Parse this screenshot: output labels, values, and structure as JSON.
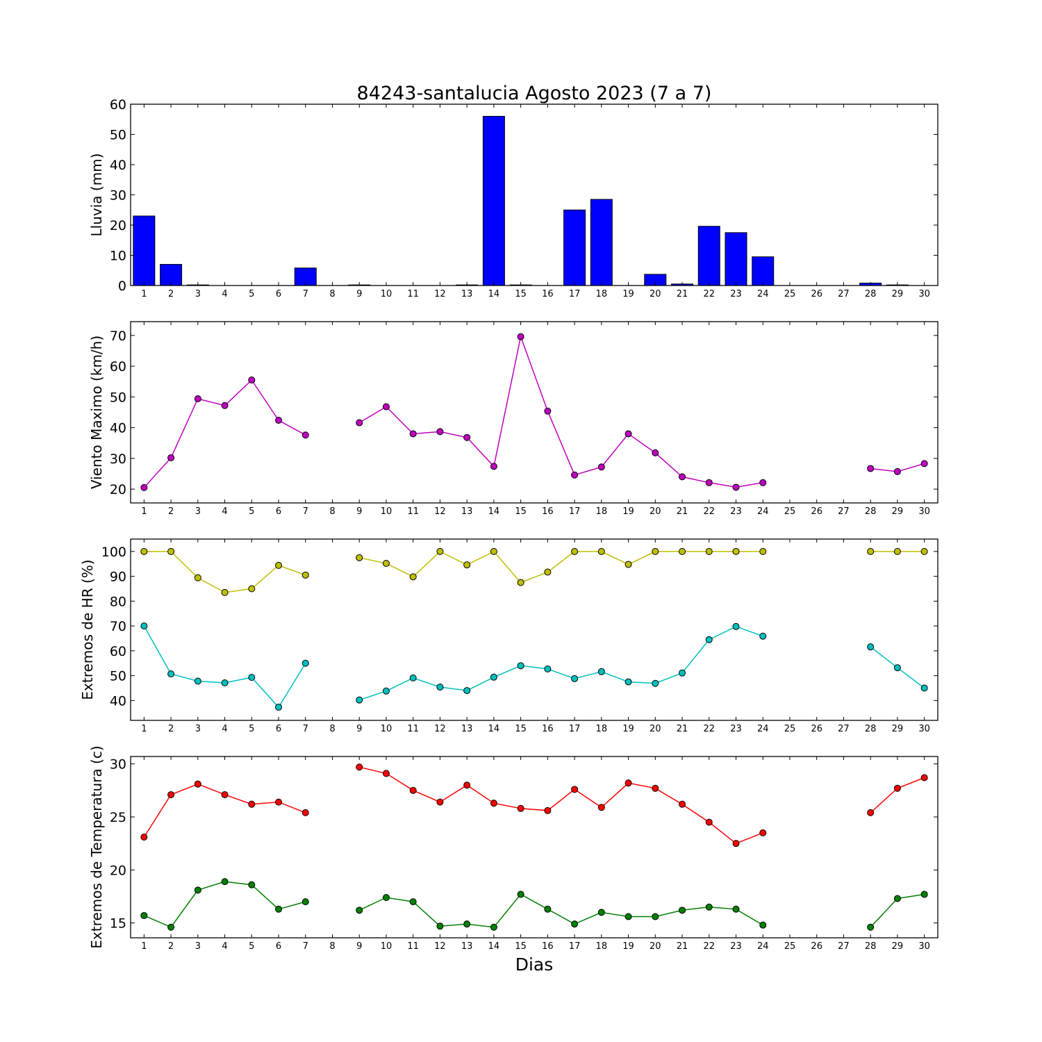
{
  "chart_data": [
    {
      "type": "bar",
      "title": "84243-santalucia Agosto 2023  (7 a 7)",
      "ylabel": "Lluvia (mm)",
      "xlabel": "",
      "categories": [
        "1",
        "2",
        "3",
        "4",
        "5",
        "6",
        "7",
        "8",
        "9",
        "10",
        "11",
        "12",
        "13",
        "14",
        "15",
        "16",
        "17",
        "18",
        "19",
        "20",
        "21",
        "22",
        "23",
        "24",
        "25",
        "26",
        "27",
        "28",
        "29",
        "30"
      ],
      "ylim": [
        0,
        60
      ],
      "yticks": [
        0,
        10,
        20,
        30,
        40,
        50,
        60
      ],
      "color": "#0000ff",
      "series": [
        {
          "values": [
            23,
            7,
            0.2,
            0,
            0,
            0,
            5.8,
            null,
            0.2,
            0,
            0,
            0,
            0.2,
            56,
            0.2,
            0,
            25,
            28.5,
            0,
            3.7,
            0.5,
            19.6,
            17.5,
            9.5,
            null,
            null,
            null,
            0.8,
            0.2,
            null
          ]
        }
      ]
    },
    {
      "type": "line",
      "ylabel": "Viento Maximo (km/h)",
      "xlabel": "",
      "categories": [
        "1",
        "2",
        "3",
        "4",
        "5",
        "6",
        "7",
        "8",
        "9",
        "10",
        "11",
        "12",
        "13",
        "14",
        "15",
        "16",
        "17",
        "18",
        "19",
        "20",
        "21",
        "22",
        "23",
        "24",
        "25",
        "26",
        "27",
        "28",
        "29",
        "30"
      ],
      "ylim": [
        15.5,
        74.5
      ],
      "yticks": [
        20,
        30,
        40,
        50,
        60,
        70
      ],
      "series": [
        {
          "color": "#bf00bf",
          "values": [
            20.5,
            30.2,
            49.4,
            47.2,
            55.5,
            42.4,
            37.6,
            null,
            41.6,
            46.8,
            38.0,
            38.7,
            36.8,
            27.4,
            69.6,
            45.4,
            24.6,
            27.2,
            38.0,
            31.8,
            24.0,
            22.1,
            20.6,
            22.1,
            null,
            null,
            null,
            26.7,
            25.7,
            28.3
          ]
        }
      ]
    },
    {
      "type": "line",
      "ylabel": "Extremos de HR (%)",
      "xlabel": "",
      "categories": [
        "1",
        "2",
        "3",
        "4",
        "5",
        "6",
        "7",
        "8",
        "9",
        "10",
        "11",
        "12",
        "13",
        "14",
        "15",
        "16",
        "17",
        "18",
        "19",
        "20",
        "21",
        "22",
        "23",
        "24",
        "25",
        "26",
        "27",
        "28",
        "29",
        "30"
      ],
      "ylim": [
        32,
        105
      ],
      "yticks": [
        40,
        50,
        60,
        70,
        80,
        90,
        100
      ],
      "series": [
        {
          "color": "#bfbf00",
          "values": [
            100,
            100,
            89.4,
            83.5,
            85.0,
            94.4,
            90.5,
            null,
            97.5,
            95.2,
            89.8,
            100,
            94.6,
            100,
            87.5,
            91.7,
            100,
            100,
            94.8,
            100,
            100,
            100,
            100,
            100,
            null,
            null,
            null,
            100,
            100,
            100
          ]
        },
        {
          "color": "#00bfbf",
          "values": [
            70.0,
            50.7,
            47.8,
            47.1,
            49.3,
            37.3,
            55.0,
            null,
            40.2,
            43.8,
            49.1,
            45.4,
            44.0,
            49.4,
            54.0,
            52.7,
            48.8,
            51.6,
            47.5,
            46.9,
            51.1,
            64.5,
            69.8,
            65.9,
            null,
            null,
            null,
            61.6,
            53.2,
            45.0
          ]
        }
      ]
    },
    {
      "type": "line",
      "ylabel": "Extremos de Temperatura (c)",
      "xlabel": "Dias",
      "categories": [
        "1",
        "2",
        "3",
        "4",
        "5",
        "6",
        "7",
        "8",
        "9",
        "10",
        "11",
        "12",
        "13",
        "14",
        "15",
        "16",
        "17",
        "18",
        "19",
        "20",
        "21",
        "22",
        "23",
        "24",
        "25",
        "26",
        "27",
        "28",
        "29",
        "30"
      ],
      "ylim": [
        13.6,
        30.7
      ],
      "yticks": [
        15,
        20,
        25,
        30
      ],
      "series": [
        {
          "color": "#ff0000",
          "values": [
            23.1,
            27.1,
            28.1,
            27.1,
            26.2,
            26.4,
            25.4,
            null,
            29.7,
            29.1,
            27.5,
            26.4,
            28.0,
            26.3,
            25.8,
            25.6,
            27.6,
            25.9,
            28.2,
            27.7,
            26.2,
            24.5,
            22.5,
            23.5,
            null,
            null,
            null,
            25.4,
            27.7,
            28.7
          ]
        },
        {
          "color": "#008000",
          "values": [
            15.7,
            14.6,
            18.1,
            18.9,
            18.6,
            16.3,
            17.0,
            null,
            16.2,
            17.4,
            17.0,
            14.7,
            14.9,
            14.6,
            17.7,
            16.3,
            14.9,
            16.0,
            15.6,
            15.6,
            16.2,
            16.5,
            16.3,
            14.8,
            null,
            null,
            null,
            14.6,
            17.3,
            17.7
          ]
        }
      ]
    }
  ]
}
